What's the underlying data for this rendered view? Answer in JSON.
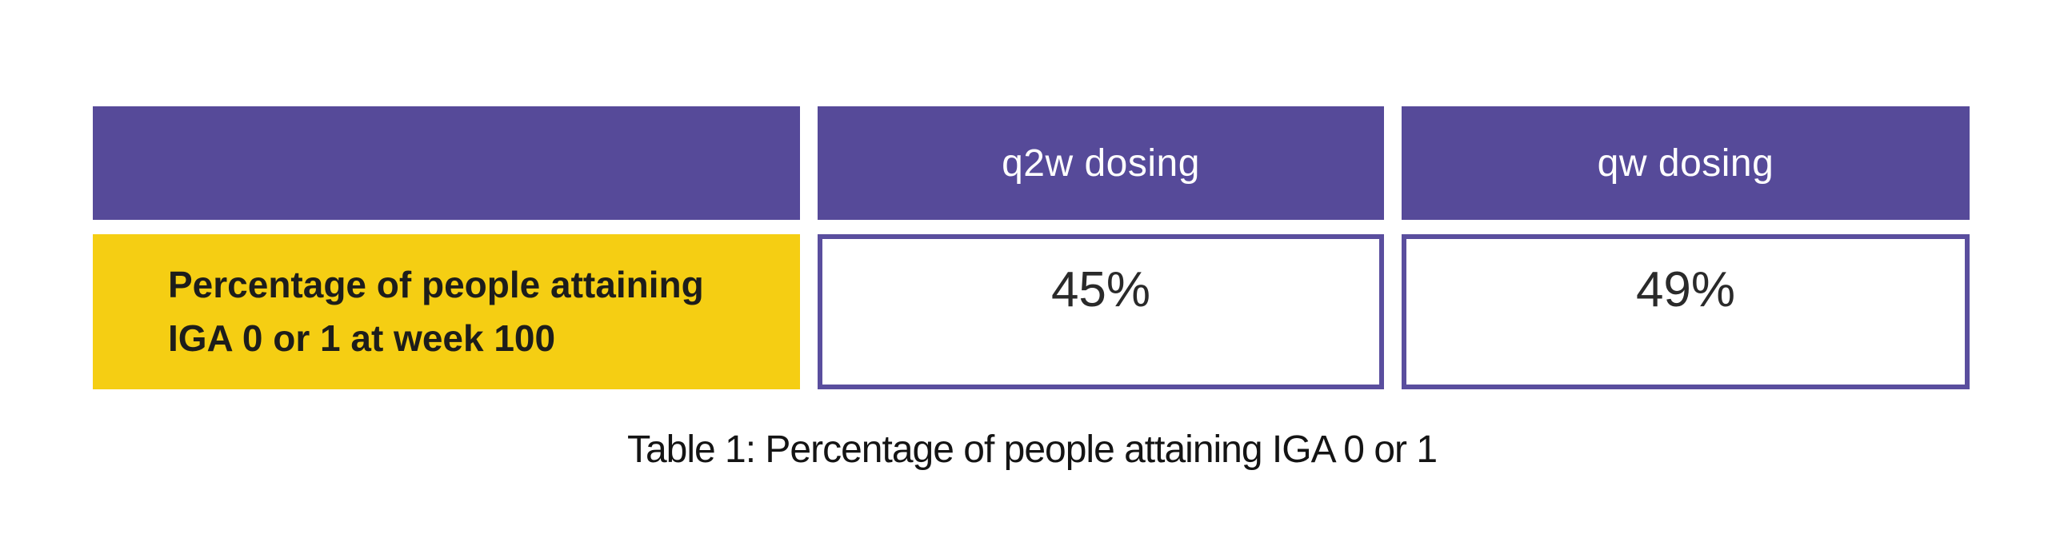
{
  "figure": {
    "caption": "Table 1: Percentage of people attaining IGA 0 or 1"
  },
  "table": {
    "columns": [
      {
        "label": "q2w dosing"
      },
      {
        "label": "qw dosing"
      }
    ],
    "row": {
      "label": "Percentage of people attaining IGA 0 or 1 at week 100",
      "label_lines": [
        "Percentage of people attaining",
        "IGA 0 or 1 at week 100"
      ],
      "values": [
        "45%",
        "49%"
      ]
    }
  },
  "chart_data": {
    "type": "table",
    "title": "Table 1: Percentage of people attaining IGA 0 or 1",
    "columns": [
      "",
      "q2w dosing",
      "qw dosing"
    ],
    "rows": [
      [
        "Percentage of people attaining IGA 0 or 1 at week 100",
        "45%",
        "49%"
      ]
    ],
    "values_numeric_percent": {
      "q2w": 45,
      "qw": 49
    }
  },
  "colors": {
    "header-purple": "#564A99",
    "row-yellow": "#F5CE13",
    "cell-border": "#5A4E9E",
    "header-text": "#FFFFFF",
    "body-text": "#1D1D1B",
    "value-text": "#2A2A2A",
    "caption-text": "#141414"
  }
}
